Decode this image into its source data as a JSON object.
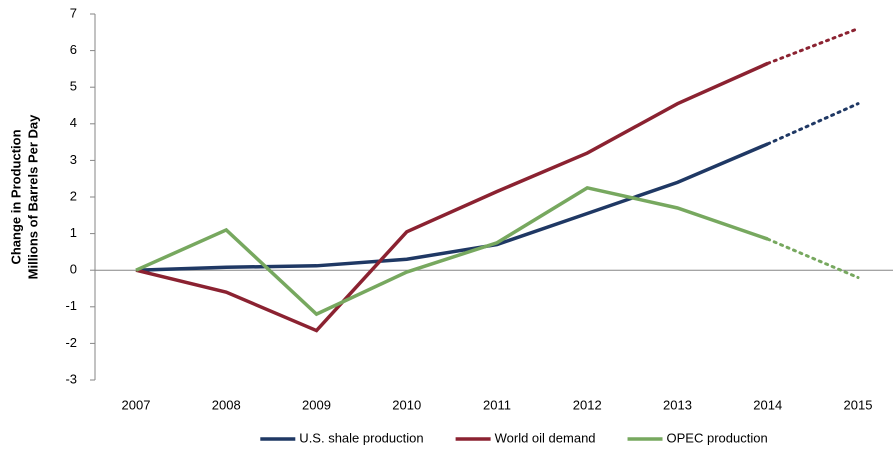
{
  "chart_data": {
    "type": "line",
    "ylabel": [
      "Change in Production",
      "Millions of Barrels Per Day"
    ],
    "categories": [
      "2007",
      "2008",
      "2009",
      "2010",
      "2011",
      "2012",
      "2013",
      "2014",
      "2015"
    ],
    "series": [
      {
        "name": "U.S. shale production",
        "color": "#1f3864",
        "values": [
          0,
          0.08,
          0.12,
          0.3,
          0.7,
          1.55,
          2.4,
          3.45,
          4.55
        ]
      },
      {
        "name": "World oil demand",
        "color": "#8b2231",
        "values": [
          0,
          -0.6,
          -1.65,
          1.05,
          2.15,
          3.2,
          4.55,
          5.65,
          6.6
        ]
      },
      {
        "name": "OPEC production",
        "color": "#77a85f",
        "values": [
          0,
          1.1,
          -1.2,
          -0.05,
          0.75,
          2.25,
          1.7,
          0.85,
          -0.2
        ]
      }
    ],
    "dotted_from": "2014",
    "ylim": [
      -3,
      7
    ],
    "yticks": [
      -3,
      -2,
      -1,
      0,
      1,
      2,
      3,
      4,
      5,
      6,
      7
    ],
    "grid": false,
    "legend": "bottom"
  }
}
